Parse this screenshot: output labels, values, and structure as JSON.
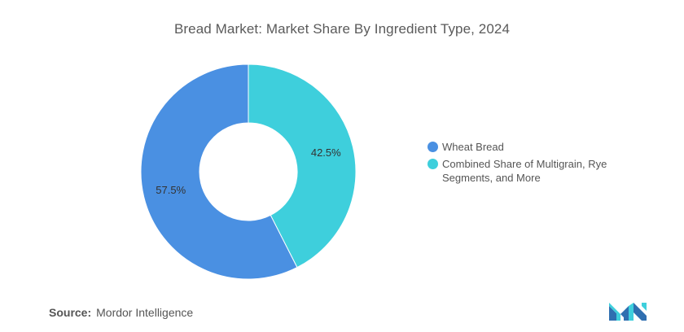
{
  "title": "Bread Market: Market Share By Ingredient Type, 2024",
  "source": {
    "label": "Source:",
    "value": "Mordor Intelligence"
  },
  "logo_icon": "mordor-intelligence-logo",
  "chart_data": {
    "type": "pie",
    "variant": "donut",
    "title": "Bread Market: Market Share By Ingredient Type, 2024",
    "unit": "%",
    "legend_position": "right",
    "categories": [
      "Wheat Bread",
      "Combined Share of Multigrain, Rye Segments, and More"
    ],
    "values": [
      57.5,
      42.5
    ],
    "data_labels": [
      "57.5%",
      "42.5%"
    ],
    "colors": [
      "#4a90e2",
      "#3ecfdc"
    ]
  }
}
